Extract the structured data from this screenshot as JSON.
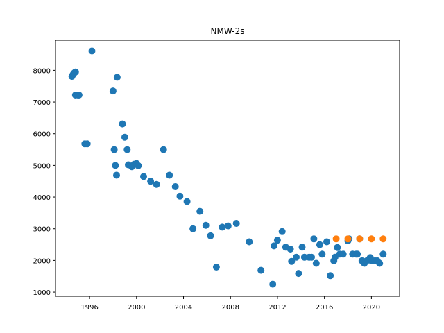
{
  "chart_data": {
    "type": "scatter",
    "title": "NMW-2s",
    "xlabel": "",
    "ylabel": "",
    "xlim": [
      1993.1,
      2022.4
    ],
    "ylim": [
      870,
      8950
    ],
    "xticks": [
      1996,
      2000,
      2004,
      2008,
      2012,
      2016,
      2020
    ],
    "xtick_labels": [
      "1996",
      "2000",
      "2004",
      "2008",
      "2012",
      "2016",
      "2020"
    ],
    "yticks": [
      1000,
      2000,
      3000,
      4000,
      5000,
      6000,
      7000,
      8000
    ],
    "ytick_labels": [
      "1000",
      "2000",
      "3000",
      "4000",
      "5000",
      "6000",
      "7000",
      "8000"
    ],
    "grid": false,
    "legend": "none",
    "series": [
      {
        "color": "#1f77b4",
        "points": [
          [
            1994.5,
            7810
          ],
          [
            1994.6,
            7870
          ],
          [
            1994.7,
            7920
          ],
          [
            1994.8,
            7950
          ],
          [
            1994.8,
            7220
          ],
          [
            1995.0,
            7220
          ],
          [
            1995.1,
            7220
          ],
          [
            1995.6,
            5680
          ],
          [
            1995.8,
            5680
          ],
          [
            1996.2,
            8610
          ],
          [
            1998.0,
            7350
          ],
          [
            1998.1,
            5500
          ],
          [
            1998.2,
            5000
          ],
          [
            1998.3,
            4690
          ],
          [
            1998.35,
            7780
          ],
          [
            1998.8,
            6310
          ],
          [
            1999.0,
            5890
          ],
          [
            1999.2,
            5500
          ],
          [
            1999.3,
            5020
          ],
          [
            1999.6,
            4960
          ],
          [
            1999.8,
            5040
          ],
          [
            2000.0,
            5060
          ],
          [
            2000.15,
            4990
          ],
          [
            2000.6,
            4650
          ],
          [
            2001.2,
            4500
          ],
          [
            2001.7,
            4400
          ],
          [
            2002.3,
            5500
          ],
          [
            2002.8,
            4690
          ],
          [
            2003.3,
            4330
          ],
          [
            2003.7,
            4030
          ],
          [
            2004.3,
            3860
          ],
          [
            2004.8,
            3000
          ],
          [
            2005.4,
            3550
          ],
          [
            2005.9,
            3110
          ],
          [
            2006.3,
            2780
          ],
          [
            2006.8,
            1790
          ],
          [
            2007.3,
            3050
          ],
          [
            2007.8,
            3090
          ],
          [
            2008.5,
            3170
          ],
          [
            2009.6,
            2590
          ],
          [
            2010.6,
            1690
          ],
          [
            2011.6,
            1250
          ],
          [
            2011.7,
            2460
          ],
          [
            2012.0,
            2640
          ],
          [
            2012.4,
            2910
          ],
          [
            2012.7,
            2420
          ],
          [
            2013.1,
            2360
          ],
          [
            2013.2,
            1970
          ],
          [
            2013.6,
            2100
          ],
          [
            2013.8,
            1590
          ],
          [
            2014.1,
            2420
          ],
          [
            2014.3,
            2100
          ],
          [
            2014.7,
            2100
          ],
          [
            2014.9,
            2100
          ],
          [
            2015.1,
            2680
          ],
          [
            2015.3,
            1910
          ],
          [
            2015.6,
            2500
          ],
          [
            2015.8,
            2200
          ],
          [
            2016.2,
            2590
          ],
          [
            2016.5,
            1520
          ],
          [
            2016.8,
            1990
          ],
          [
            2016.9,
            2100
          ],
          [
            2017.1,
            2410
          ],
          [
            2017.3,
            2200
          ],
          [
            2017.6,
            2200
          ],
          [
            2018.0,
            2620
          ],
          [
            2018.1,
            2680
          ],
          [
            2018.4,
            2200
          ],
          [
            2018.7,
            2200
          ],
          [
            2018.8,
            2200
          ],
          [
            2019.0,
            2680
          ],
          [
            2019.2,
            1990
          ],
          [
            2019.4,
            1910
          ],
          [
            2019.6,
            1990
          ],
          [
            2019.9,
            2090
          ],
          [
            2020.0,
            1990
          ],
          [
            2020.3,
            1990
          ],
          [
            2020.5,
            1990
          ],
          [
            2020.7,
            1910
          ],
          [
            2021.0,
            2200
          ]
        ]
      },
      {
        "color": "#ff7f0e",
        "points": [
          [
            2017.0,
            2680
          ],
          [
            2018.0,
            2680
          ],
          [
            2019.0,
            2680
          ],
          [
            2020.0,
            2680
          ],
          [
            2021.0,
            2680
          ]
        ]
      }
    ]
  }
}
